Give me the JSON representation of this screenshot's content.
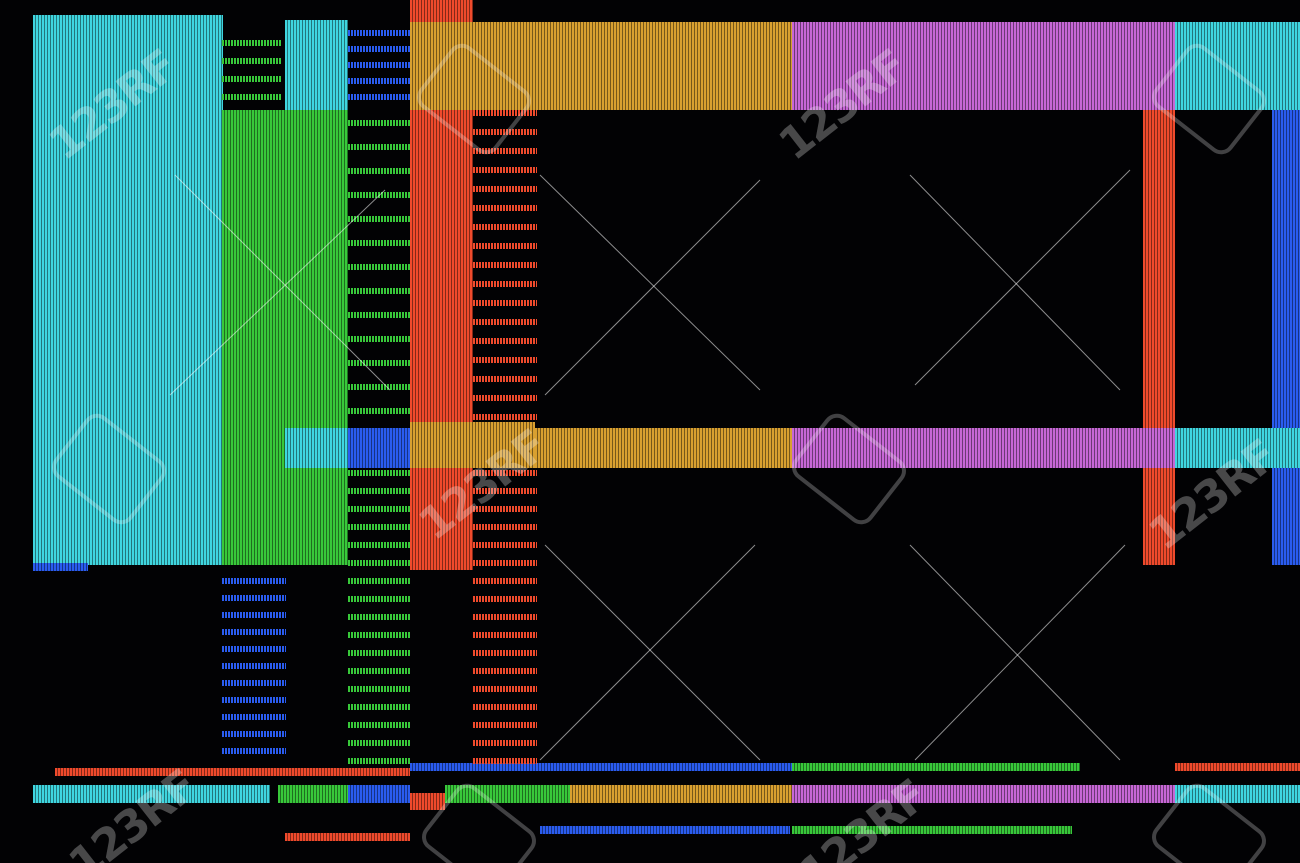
{
  "image": {
    "subject": "glitched LCD screen macro",
    "colors": {
      "cyan": "#3fd6e0",
      "green": "#38c83a",
      "red": "#ef4a2c",
      "orange": "#d9a030",
      "magenta": "#c767d6",
      "blue": "#2a5cf0",
      "background": "#020204"
    },
    "watermark": "123RF"
  }
}
